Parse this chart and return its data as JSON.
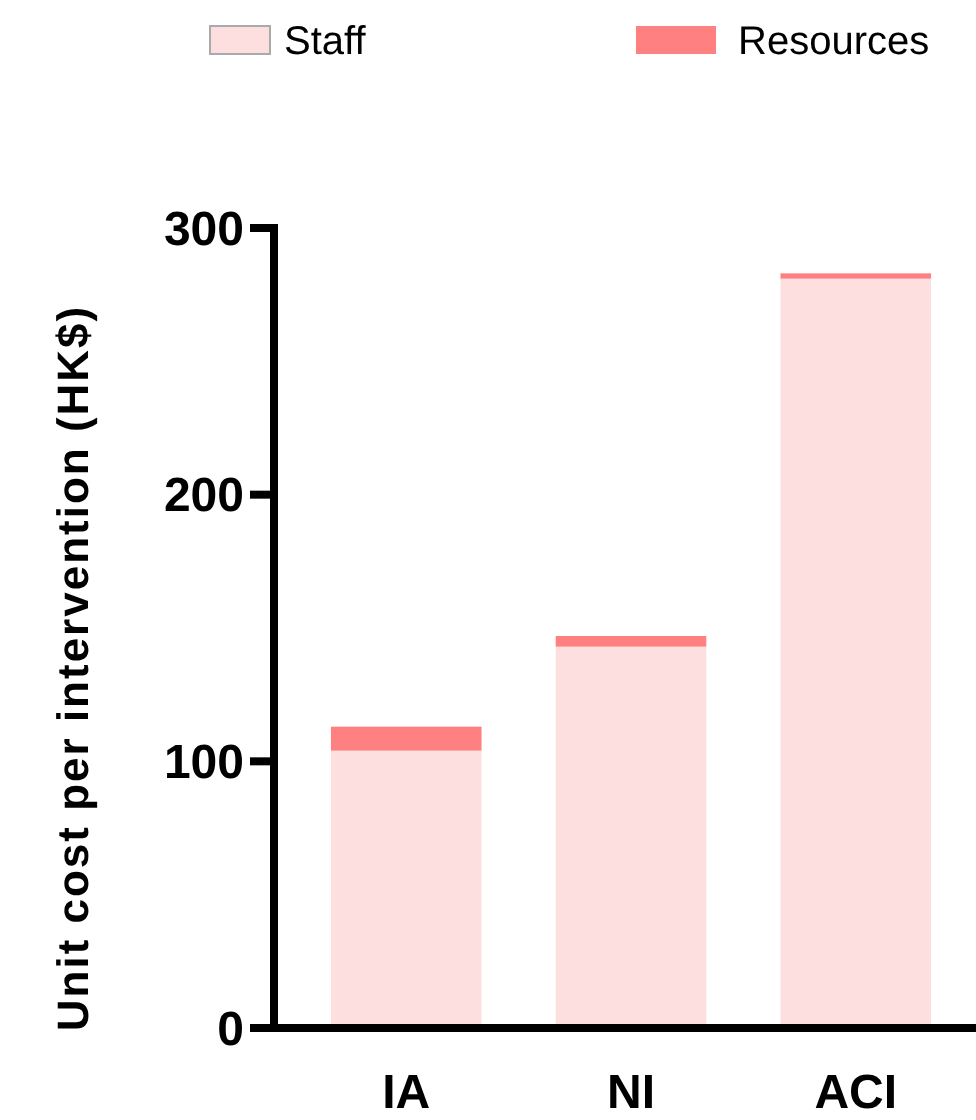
{
  "chart_data": {
    "type": "bar",
    "ylabel": "Unit cost per intervention (HK$)",
    "categories": [
      "IA",
      "NI",
      "ACI"
    ],
    "stacked": true,
    "legend": "top",
    "ylim": [
      0,
      300
    ],
    "yticks": [
      0,
      100,
      200,
      300
    ],
    "series": [
      {
        "name": "Staff",
        "color": "#fddfdf",
        "values": [
          104,
          143,
          281
        ]
      },
      {
        "name": "Resources",
        "color": "#ff8080",
        "values": [
          9,
          4,
          2
        ]
      }
    ]
  }
}
